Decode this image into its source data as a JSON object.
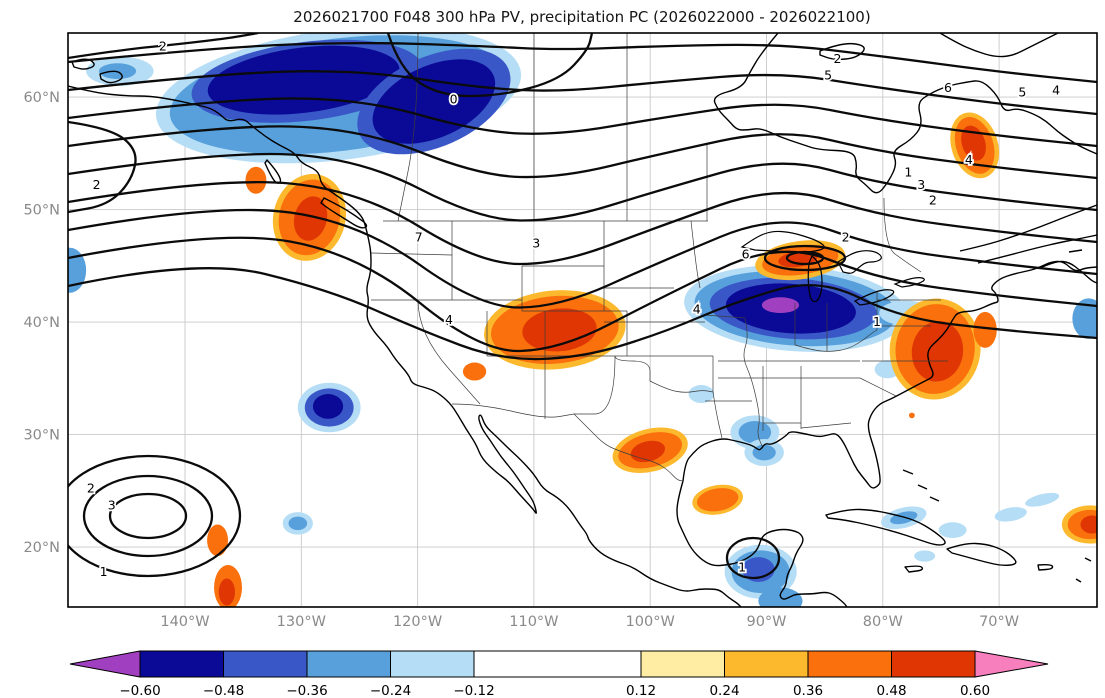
{
  "title": "2026021700 F048 300 hPa PV, precipitation PC (2026022000 - 2026022100)",
  "chart_data": {
    "type": "heatmap",
    "subtype": "filled-anomaly-map-with-contours",
    "title": "2026021700 F048 300 hPa PV, precipitation PC (2026022000 - 2026022100)",
    "projection": "plate-carree",
    "grid": true,
    "extent": {
      "lon_west_w": 150.1,
      "lon_east_w": 61.6,
      "lat_south_n": 14.7,
      "lat_north_n": 65.7
    },
    "x_axis": {
      "ticks": [
        {
          "label": "140°W",
          "lon_w": 140
        },
        {
          "label": "130°W",
          "lon_w": 130
        },
        {
          "label": "120°W",
          "lon_w": 120
        },
        {
          "label": "110°W",
          "lon_w": 110
        },
        {
          "label": "100°W",
          "lon_w": 100
        },
        {
          "label": "90°W",
          "lon_w": 90
        },
        {
          "label": "80°W",
          "lon_w": 80
        },
        {
          "label": "70°W",
          "lon_w": 70
        }
      ]
    },
    "y_axis": {
      "ticks": [
        {
          "label": "60°N",
          "lat_n": 60
        },
        {
          "label": "50°N",
          "lat_n": 50
        },
        {
          "label": "40°N",
          "lat_n": 40
        },
        {
          "label": "30°N",
          "lat_n": 30
        },
        {
          "label": "20°N",
          "lat_n": 20
        }
      ]
    },
    "contours": {
      "variable": "300 hPa PV",
      "line_color": "#0b0b0b",
      "levels_labeled": [
        0,
        1,
        2,
        3,
        4,
        5,
        6,
        7
      ],
      "labels": [
        {
          "v": "2",
          "lon_w": 141.9,
          "lat_n": 64.5
        },
        {
          "v": "0",
          "lon_w": 116.9,
          "lat_n": 59.8
        },
        {
          "v": "2",
          "lon_w": 147.6,
          "lat_n": 52.2
        },
        {
          "v": "7",
          "lon_w": 119.9,
          "lat_n": 47.5
        },
        {
          "v": "3",
          "lon_w": 109.8,
          "lat_n": 47.0
        },
        {
          "v": "4",
          "lon_w": 117.3,
          "lat_n": 40.2
        },
        {
          "v": "4",
          "lon_w": 96.0,
          "lat_n": 41.1
        },
        {
          "v": "6",
          "lon_w": 91.8,
          "lat_n": 46.0
        },
        {
          "v": "2",
          "lon_w": 83.2,
          "lat_n": 47.5
        },
        {
          "v": "1",
          "lon_w": 80.5,
          "lat_n": 40.0
        },
        {
          "v": "5",
          "lon_w": 84.7,
          "lat_n": 61.9
        },
        {
          "v": "2",
          "lon_w": 83.9,
          "lat_n": 63.4
        },
        {
          "v": "6",
          "lon_w": 74.4,
          "lat_n": 60.8
        },
        {
          "v": "5",
          "lon_w": 68.0,
          "lat_n": 60.4
        },
        {
          "v": "4",
          "lon_w": 65.1,
          "lat_n": 60.6
        },
        {
          "v": "4",
          "lon_w": 72.6,
          "lat_n": 54.4
        },
        {
          "v": "1",
          "lon_w": 77.8,
          "lat_n": 53.3
        },
        {
          "v": "3",
          "lon_w": 76.7,
          "lat_n": 52.2
        },
        {
          "v": "2",
          "lon_w": 75.7,
          "lat_n": 50.8
        },
        {
          "v": "1",
          "lon_w": 147.0,
          "lat_n": 17.8
        },
        {
          "v": "2",
          "lon_w": 148.1,
          "lat_n": 25.2
        },
        {
          "v": "3",
          "lon_w": 146.3,
          "lat_n": 23.7
        },
        {
          "v": "1",
          "lon_w": 92.1,
          "lat_n": 18.2
        }
      ]
    },
    "shading": {
      "variable": "precipitation PC",
      "colorbar": {
        "tick_labels": [
          "−0.60",
          "−0.48",
          "−0.36",
          "−0.24",
          "−0.12",
          "0.12",
          "0.24",
          "0.36",
          "0.48",
          "0.60"
        ],
        "segment_colors": [
          "#0a0a96",
          "#3a57c8",
          "#57a0dc",
          "#b5ddf5",
          "#ffffff",
          "#ffeda3",
          "#fdb92e",
          "#f9700d",
          "#e03604"
        ],
        "under_color": "#a040c0",
        "over_color": "#f77fbe",
        "level_values": {
          "under": "< −0.60",
          "0": "−0.60 to −0.48",
          "1": "−0.48 to −0.36",
          "2": "−0.36 to −0.24",
          "3": "−0.24 to −0.12",
          "4": "−0.12 to 0.12",
          "5": "0.12 to 0.24",
          "6": "0.24 to 0.36",
          "7": "0.36 to 0.48",
          "8": "0.48 to 0.60",
          "over": "> 0.60"
        }
      },
      "regions": [
        {
          "lon_w": 126.8,
          "lat_n": 60.2,
          "rx_deg": 15.8,
          "ry_deg": 5.8,
          "rot_deg": -7,
          "level": 3
        },
        {
          "lon_w": 126.8,
          "lat_n": 60.2,
          "rx_deg": 14.6,
          "ry_deg": 5.0,
          "rot_deg": -7,
          "level": 2
        },
        {
          "lon_w": 129.5,
          "lat_n": 61.4,
          "rx_deg": 10.0,
          "ry_deg": 3.5,
          "rot_deg": -7,
          "level": 1
        },
        {
          "lon_w": 129.8,
          "lat_n": 61.5,
          "rx_deg": 8.3,
          "ry_deg": 2.9,
          "rot_deg": -7,
          "level": 0
        },
        {
          "lon_w": 118.6,
          "lat_n": 59.6,
          "rx_deg": 7.0,
          "ry_deg": 4.0,
          "rot_deg": -24,
          "level": 1
        },
        {
          "lon_w": 118.6,
          "lat_n": 59.6,
          "rx_deg": 5.6,
          "ry_deg": 3.2,
          "rot_deg": -24,
          "level": 0
        },
        {
          "lon_w": 145.6,
          "lat_n": 62.3,
          "rx_deg": 2.9,
          "ry_deg": 1.3,
          "rot_deg": 0,
          "level": 3
        },
        {
          "lon_w": 145.8,
          "lat_n": 62.3,
          "rx_deg": 1.6,
          "ry_deg": 0.7,
          "rot_deg": 0,
          "level": 2
        },
        {
          "lon_w": 149.9,
          "lat_n": 44.6,
          "rx_deg": 1.4,
          "ry_deg": 2.0,
          "rot_deg": 0,
          "level": 2
        },
        {
          "lon_w": 127.6,
          "lat_n": 32.4,
          "rx_deg": 2.7,
          "ry_deg": 2.2,
          "rot_deg": 0,
          "level": 3
        },
        {
          "lon_w": 127.6,
          "lat_n": 32.4,
          "rx_deg": 2.1,
          "ry_deg": 1.7,
          "rot_deg": 0,
          "level": 1
        },
        {
          "lon_w": 127.7,
          "lat_n": 32.5,
          "rx_deg": 1.3,
          "ry_deg": 1.1,
          "rot_deg": 0,
          "level": 0
        },
        {
          "lon_w": 130.3,
          "lat_n": 22.1,
          "rx_deg": 1.3,
          "ry_deg": 1.0,
          "rot_deg": 0,
          "level": 3
        },
        {
          "lon_w": 130.3,
          "lat_n": 22.1,
          "rx_deg": 0.8,
          "ry_deg": 0.6,
          "rot_deg": 0,
          "level": 2
        },
        {
          "lon_w": 87.5,
          "lat_n": 41.2,
          "rx_deg": 9.6,
          "ry_deg": 3.8,
          "rot_deg": 4,
          "level": 3
        },
        {
          "lon_w": 87.5,
          "lat_n": 41.2,
          "rx_deg": 8.7,
          "ry_deg": 3.3,
          "rot_deg": 4,
          "level": 2
        },
        {
          "lon_w": 87.7,
          "lat_n": 41.2,
          "rx_deg": 7.2,
          "ry_deg": 2.7,
          "rot_deg": 4,
          "level": 1
        },
        {
          "lon_w": 87.9,
          "lat_n": 41.2,
          "rx_deg": 5.6,
          "ry_deg": 2.2,
          "rot_deg": 4,
          "level": 0
        },
        {
          "lon_w": 88.8,
          "lat_n": 41.5,
          "rx_deg": 1.6,
          "ry_deg": 0.7,
          "rot_deg": 0,
          "level": "under"
        },
        {
          "lon_w": 78.0,
          "lat_n": 40.8,
          "rx_deg": 2.3,
          "ry_deg": 1.1,
          "rot_deg": 0,
          "level": 3
        },
        {
          "lon_w": 79.6,
          "lat_n": 35.8,
          "rx_deg": 1.1,
          "ry_deg": 0.8,
          "rot_deg": 0,
          "level": 3
        },
        {
          "lon_w": 91.0,
          "lat_n": 30.2,
          "rx_deg": 2.1,
          "ry_deg": 1.5,
          "rot_deg": 0,
          "level": 3
        },
        {
          "lon_w": 91.0,
          "lat_n": 30.2,
          "rx_deg": 1.4,
          "ry_deg": 1.0,
          "rot_deg": 0,
          "level": 2
        },
        {
          "lon_w": 90.2,
          "lat_n": 28.4,
          "rx_deg": 1.7,
          "ry_deg": 1.2,
          "rot_deg": 0,
          "level": 3
        },
        {
          "lon_w": 90.2,
          "lat_n": 28.4,
          "rx_deg": 1.0,
          "ry_deg": 0.7,
          "rot_deg": 0,
          "level": 2
        },
        {
          "lon_w": 95.6,
          "lat_n": 33.6,
          "rx_deg": 1.1,
          "ry_deg": 0.8,
          "rot_deg": 0,
          "level": 3
        },
        {
          "lon_w": 90.5,
          "lat_n": 17.8,
          "rx_deg": 3.1,
          "ry_deg": 2.4,
          "rot_deg": 0,
          "level": 3
        },
        {
          "lon_w": 90.5,
          "lat_n": 17.8,
          "rx_deg": 2.5,
          "ry_deg": 1.9,
          "rot_deg": 0,
          "level": 2
        },
        {
          "lon_w": 90.7,
          "lat_n": 18.0,
          "rx_deg": 1.4,
          "ry_deg": 1.1,
          "rot_deg": 0,
          "level": 1
        },
        {
          "lon_w": 88.8,
          "lat_n": 15.2,
          "rx_deg": 1.9,
          "ry_deg": 1.2,
          "rot_deg": 0,
          "level": 2
        },
        {
          "lon_w": 78.2,
          "lat_n": 22.6,
          "rx_deg": 2.0,
          "ry_deg": 0.9,
          "rot_deg": -14,
          "level": 3
        },
        {
          "lon_w": 78.2,
          "lat_n": 22.6,
          "rx_deg": 1.2,
          "ry_deg": 0.5,
          "rot_deg": -14,
          "level": 2
        },
        {
          "lon_w": 74.0,
          "lat_n": 21.5,
          "rx_deg": 1.2,
          "ry_deg": 0.7,
          "rot_deg": 0,
          "level": 3
        },
        {
          "lon_w": 69.0,
          "lat_n": 22.9,
          "rx_deg": 1.4,
          "ry_deg": 0.6,
          "rot_deg": -10,
          "level": 3
        },
        {
          "lon_w": 66.3,
          "lat_n": 24.2,
          "rx_deg": 1.5,
          "ry_deg": 0.5,
          "rot_deg": -14,
          "level": 3
        },
        {
          "lon_w": 76.4,
          "lat_n": 19.2,
          "rx_deg": 0.9,
          "ry_deg": 0.5,
          "rot_deg": 0,
          "level": 3
        },
        {
          "lon_w": 62.3,
          "lat_n": 40.3,
          "rx_deg": 1.4,
          "ry_deg": 1.8,
          "rot_deg": 0,
          "level": 2
        },
        {
          "lon_w": 129.3,
          "lat_n": 49.3,
          "rx_deg": 3.1,
          "ry_deg": 3.9,
          "rot_deg": 14,
          "level": 6
        },
        {
          "lon_w": 129.3,
          "lat_n": 49.3,
          "rx_deg": 2.6,
          "ry_deg": 3.4,
          "rot_deg": 14,
          "level": 7
        },
        {
          "lon_w": 129.2,
          "lat_n": 49.2,
          "rx_deg": 1.4,
          "ry_deg": 2.0,
          "rot_deg": 14,
          "level": 8
        },
        {
          "lon_w": 133.9,
          "lat_n": 52.6,
          "rx_deg": 0.9,
          "ry_deg": 1.2,
          "rot_deg": 0,
          "level": 7
        },
        {
          "lon_w": 108.2,
          "lat_n": 39.3,
          "rx_deg": 6.1,
          "ry_deg": 3.5,
          "rot_deg": -5,
          "level": 6
        },
        {
          "lon_w": 108.2,
          "lat_n": 39.3,
          "rx_deg": 5.5,
          "ry_deg": 3.0,
          "rot_deg": -5,
          "level": 7
        },
        {
          "lon_w": 107.8,
          "lat_n": 39.3,
          "rx_deg": 3.2,
          "ry_deg": 1.9,
          "rot_deg": -5,
          "level": 8
        },
        {
          "lon_w": 115.1,
          "lat_n": 35.6,
          "rx_deg": 1.0,
          "ry_deg": 0.8,
          "rot_deg": 0,
          "level": 7
        },
        {
          "lon_w": 87.1,
          "lat_n": 45.5,
          "rx_deg": 3.9,
          "ry_deg": 1.7,
          "rot_deg": -8,
          "level": 6
        },
        {
          "lon_w": 87.1,
          "lat_n": 45.5,
          "rx_deg": 3.3,
          "ry_deg": 1.3,
          "rot_deg": -8,
          "level": 7
        },
        {
          "lon_w": 87.3,
          "lat_n": 45.6,
          "rx_deg": 1.7,
          "ry_deg": 0.7,
          "rot_deg": -8,
          "level": 8
        },
        {
          "lon_w": 75.5,
          "lat_n": 37.6,
          "rx_deg": 3.9,
          "ry_deg": 4.5,
          "rot_deg": 8,
          "level": 6
        },
        {
          "lon_w": 75.5,
          "lat_n": 37.6,
          "rx_deg": 3.4,
          "ry_deg": 4.0,
          "rot_deg": 8,
          "level": 7
        },
        {
          "lon_w": 75.3,
          "lat_n": 37.4,
          "rx_deg": 2.2,
          "ry_deg": 2.7,
          "rot_deg": 8,
          "level": 8
        },
        {
          "lon_w": 71.2,
          "lat_n": 39.3,
          "rx_deg": 1.0,
          "ry_deg": 1.6,
          "rot_deg": 0,
          "level": 7
        },
        {
          "lon_w": 100.0,
          "lat_n": 28.6,
          "rx_deg": 3.3,
          "ry_deg": 1.9,
          "rot_deg": -14,
          "level": 6
        },
        {
          "lon_w": 100.0,
          "lat_n": 28.6,
          "rx_deg": 2.8,
          "ry_deg": 1.5,
          "rot_deg": -14,
          "level": 7
        },
        {
          "lon_w": 100.2,
          "lat_n": 28.5,
          "rx_deg": 1.5,
          "ry_deg": 0.9,
          "rot_deg": -14,
          "level": 8
        },
        {
          "lon_w": 94.2,
          "lat_n": 24.2,
          "rx_deg": 2.2,
          "ry_deg": 1.3,
          "rot_deg": -10,
          "level": 6
        },
        {
          "lon_w": 94.2,
          "lat_n": 24.2,
          "rx_deg": 1.8,
          "ry_deg": 1.0,
          "rot_deg": -10,
          "level": 7
        },
        {
          "lon_w": 137.2,
          "lat_n": 20.6,
          "rx_deg": 0.9,
          "ry_deg": 1.4,
          "rot_deg": 0,
          "level": 7
        },
        {
          "lon_w": 136.3,
          "lat_n": 16.4,
          "rx_deg": 1.2,
          "ry_deg": 2.0,
          "rot_deg": 0,
          "level": 7
        },
        {
          "lon_w": 136.4,
          "lat_n": 16.0,
          "rx_deg": 0.7,
          "ry_deg": 1.2,
          "rot_deg": 0,
          "level": 8
        },
        {
          "lon_w": 72.1,
          "lat_n": 55.7,
          "rx_deg": 2.0,
          "ry_deg": 3.0,
          "rot_deg": -18,
          "level": 6
        },
        {
          "lon_w": 72.1,
          "lat_n": 55.7,
          "rx_deg": 1.6,
          "ry_deg": 2.6,
          "rot_deg": -18,
          "level": 7
        },
        {
          "lon_w": 72.2,
          "lat_n": 55.9,
          "rx_deg": 1.0,
          "ry_deg": 1.6,
          "rot_deg": -18,
          "level": 8
        },
        {
          "lon_w": 62.2,
          "lat_n": 22.0,
          "rx_deg": 2.4,
          "ry_deg": 1.7,
          "rot_deg": 0,
          "level": 6
        },
        {
          "lon_w": 62.2,
          "lat_n": 22.0,
          "rx_deg": 1.9,
          "ry_deg": 1.3,
          "rot_deg": 0,
          "level": 7
        },
        {
          "lon_w": 62.0,
          "lat_n": 22.0,
          "rx_deg": 1.0,
          "ry_deg": 0.8,
          "rot_deg": 0,
          "level": 8
        },
        {
          "lon_w": 77.5,
          "lat_n": 31.7,
          "rx_deg": 0.25,
          "ry_deg": 0.25,
          "rot_deg": 0,
          "level": 7
        }
      ]
    }
  }
}
